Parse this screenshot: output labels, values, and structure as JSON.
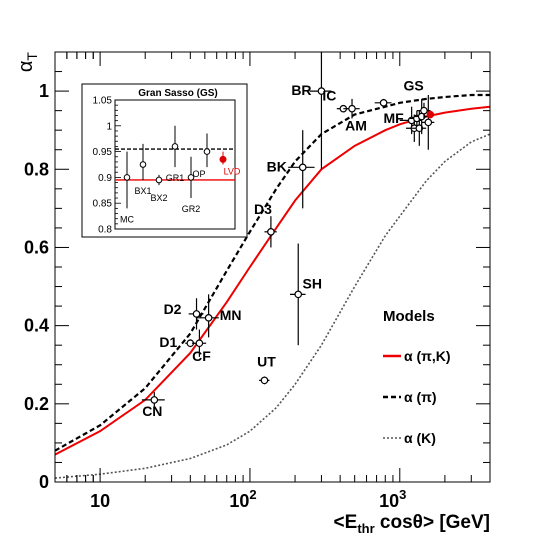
{
  "chart_data": [
    {
      "type": "scatter",
      "title": "",
      "xlabel": "<E_thr cosθ> [GeV]",
      "ylabel": "α_T",
      "xscale": "log",
      "xlim": [
        5,
        4000
      ],
      "ylim": [
        0,
        1.1
      ],
      "x_ticks": [
        10,
        100,
        1000
      ],
      "x_tick_labels": [
        "10",
        "10^2",
        "10^3"
      ],
      "y_ticks": [
        0,
        0.2,
        0.4,
        0.6,
        0.8,
        1.0
      ],
      "y_tick_labels": [
        "0",
        "0.2",
        "0.4",
        "0.6",
        "0.8",
        "1"
      ],
      "grid": false,
      "points": [
        {
          "label": "CN",
          "x": 23,
          "y": 0.21,
          "xerr": [
            19,
            27
          ],
          "yerr": [
            0.19,
            0.23
          ]
        },
        {
          "label": "D1",
          "x": 40,
          "y": 0.355,
          "xerr": [
            37,
            43
          ],
          "yerr": [
            0.345,
            0.365
          ]
        },
        {
          "label": "CF",
          "x": 46,
          "y": 0.355,
          "xerr": [
            41,
            51
          ],
          "yerr": [
            0.32,
            0.39
          ]
        },
        {
          "label": "D2",
          "x": 44,
          "y": 0.43,
          "xerr": [
            39,
            49
          ],
          "yerr": [
            0.39,
            0.47
          ]
        },
        {
          "label": "MN",
          "x": 53,
          "y": 0.42,
          "xerr": [
            44,
            62
          ],
          "yerr": [
            0.37,
            0.48
          ]
        },
        {
          "label": "UT",
          "x": 125,
          "y": 0.26,
          "xerr": [
            115,
            135
          ],
          "yerr": [
            0.25,
            0.27
          ]
        },
        {
          "label": "SH",
          "x": 210,
          "y": 0.48,
          "xerr": [
            185,
            235
          ],
          "yerr": [
            0.35,
            0.61
          ]
        },
        {
          "label": "D3",
          "x": 138,
          "y": 0.64,
          "xerr": [
            125,
            151
          ],
          "yerr": [
            0.6,
            0.68
          ]
        },
        {
          "label": "BK",
          "x": 225,
          "y": 0.805,
          "xerr": [
            180,
            270
          ],
          "yerr": [
            0.7,
            0.9
          ]
        },
        {
          "label": "BR",
          "x": 300,
          "y": 1.0,
          "xerr": [
            250,
            350
          ],
          "yerr": [
            0.8,
            1.1
          ]
        },
        {
          "label": "IC",
          "x": 420,
          "y": 0.955,
          "xerr": [
            380,
            460
          ],
          "yerr": [
            0.95,
            0.96
          ]
        },
        {
          "label": "AM",
          "x": 480,
          "y": 0.955,
          "xerr": [
            420,
            540
          ],
          "yerr": [
            0.93,
            0.98
          ]
        },
        {
          "label": "MF",
          "x": 780,
          "y": 0.97,
          "xerr": [
            680,
            880
          ],
          "yerr": [
            0.96,
            0.98
          ]
        },
        {
          "label": "GS",
          "x": 1200,
          "y": 0.925,
          "xerr": [
            1000,
            1400
          ],
          "yerr": [
            0.89,
            0.96
          ]
        },
        {
          "label": "",
          "x": 1250,
          "y": 0.905,
          "xerr": [
            1100,
            1400
          ],
          "yerr": [
            0.87,
            0.94
          ]
        },
        {
          "label": "",
          "x": 1300,
          "y": 0.93,
          "xerr": [
            1150,
            1450
          ],
          "yerr": [
            0.91,
            0.95
          ]
        },
        {
          "label": "",
          "x": 1350,
          "y": 0.905,
          "xerr": [
            1200,
            1500
          ],
          "yerr": [
            0.86,
            0.95
          ]
        },
        {
          "label": "",
          "x": 1400,
          "y": 0.935,
          "xerr": [
            1250,
            1550
          ],
          "yerr": [
            0.89,
            0.98
          ]
        },
        {
          "label": "",
          "x": 1450,
          "y": 0.95,
          "xerr": [
            1300,
            1600
          ],
          "yerr": [
            0.93,
            0.97
          ]
        },
        {
          "label": "",
          "x": 1550,
          "y": 0.92,
          "xerr": [
            1400,
            1700
          ],
          "yerr": [
            0.85,
            0.99
          ]
        }
      ],
      "highlight_point": {
        "x": 1600,
        "y": 0.94,
        "xerr": [
          1520,
          1680
        ],
        "yerr": [
          0.93,
          0.95
        ],
        "color": "#dd0000"
      },
      "legend": {
        "title": "Models",
        "placement": "bottom-right",
        "entries": [
          {
            "label": "α (π,K)",
            "color": "#ee0000",
            "style": "solid"
          },
          {
            "label": "α (π)",
            "color": "#000000",
            "style": "dashed"
          },
          {
            "label": "α (K)",
            "color": "#555555",
            "style": "dotted"
          }
        ]
      },
      "curves": [
        {
          "name": "α (π,K)",
          "style": "solid",
          "color": "#ee0000",
          "x": [
            5,
            10,
            20,
            40,
            70,
            100,
            150,
            200,
            300,
            500,
            800,
            1000,
            1500,
            2000,
            3000,
            4000
          ],
          "y": [
            0.07,
            0.13,
            0.21,
            0.33,
            0.46,
            0.55,
            0.65,
            0.72,
            0.8,
            0.86,
            0.9,
            0.915,
            0.935,
            0.945,
            0.955,
            0.96
          ]
        },
        {
          "name": "α (π)",
          "style": "dashed",
          "color": "#000000",
          "x": [
            5,
            10,
            20,
            40,
            70,
            100,
            150,
            200,
            300,
            500,
            800,
            1000,
            1500,
            2000,
            3000,
            4000
          ],
          "y": [
            0.08,
            0.145,
            0.24,
            0.38,
            0.54,
            0.64,
            0.75,
            0.82,
            0.89,
            0.94,
            0.96,
            0.97,
            0.98,
            0.985,
            0.99,
            0.99
          ]
        },
        {
          "name": "α (K)",
          "style": "dotted",
          "color": "#555555",
          "x": [
            5,
            10,
            20,
            40,
            70,
            100,
            150,
            200,
            300,
            500,
            800,
            1000,
            1500,
            2000,
            3000,
            4000
          ],
          "y": [
            0.01,
            0.02,
            0.035,
            0.06,
            0.095,
            0.13,
            0.19,
            0.25,
            0.35,
            0.5,
            0.63,
            0.68,
            0.77,
            0.82,
            0.87,
            0.89
          ]
        }
      ]
    },
    {
      "type": "scatter",
      "title": "Gran Sasso (GS)",
      "xlabel": "",
      "ylabel": "",
      "ylim": [
        0.8,
        1.05
      ],
      "y_ticks": [
        0.8,
        0.85,
        0.9,
        0.95,
        1.0,
        1.05
      ],
      "y_tick_labels": [
        "0.8",
        "0.85",
        "0.9",
        "0.95",
        "1",
        "1.05"
      ],
      "ref_lines": [
        {
          "y": 0.955,
          "style": "dashed",
          "color": "#000000"
        },
        {
          "y": 0.895,
          "style": "solid",
          "color": "#ee0000"
        }
      ],
      "points": [
        {
          "label": "MC",
          "y": 0.9,
          "yerr": [
            0.84,
            0.95
          ],
          "color": "#000000"
        },
        {
          "label": "BX1",
          "y": 0.925,
          "yerr": [
            0.895,
            0.965
          ],
          "color": "#000000"
        },
        {
          "label": "BX2",
          "y": 0.895,
          "yerr": [
            0.885,
            0.905
          ],
          "color": "#000000"
        },
        {
          "label": "GR1",
          "y": 0.96,
          "yerr": [
            0.92,
            1.0
          ],
          "color": "#000000"
        },
        {
          "label": "GR2",
          "y": 0.9,
          "yerr": [
            0.86,
            0.94
          ],
          "color": "#000000"
        },
        {
          "label": "OP",
          "y": 0.95,
          "yerr": [
            0.92,
            0.985
          ],
          "color": "#000000"
        },
        {
          "label": "LVD",
          "y": 0.935,
          "yerr": [
            0.925,
            0.95
          ],
          "color": "#dd0000"
        }
      ]
    }
  ]
}
